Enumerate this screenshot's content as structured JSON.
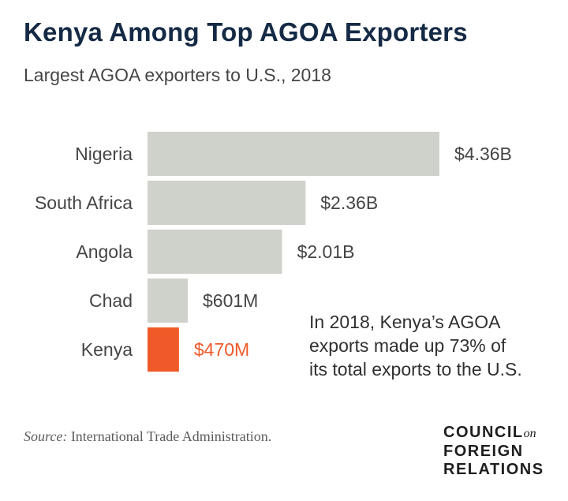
{
  "header": {
    "title": "Kenya Among Top AGOA Exporters",
    "subtitle": "Largest AGOA exporters to U.S., 2018"
  },
  "chart_data": {
    "type": "bar",
    "orientation": "horizontal",
    "categories": [
      "Nigeria",
      "South Africa",
      "Angola",
      "Chad",
      "Kenya"
    ],
    "values": [
      4.36,
      2.36,
      2.01,
      0.601,
      0.47
    ],
    "value_labels": [
      "$4.36B",
      "$2.36B",
      "$2.01B",
      "$601M",
      "$470M"
    ],
    "unit": "USD billions",
    "xlim": [
      0,
      4.36
    ],
    "grid": false,
    "legend": "none",
    "bar_color": "#cfd1cb",
    "highlight_category": "Kenya",
    "highlight_color": "#f05a28",
    "label_color": "#454545"
  },
  "annotation": {
    "lines": [
      "In 2018, Kenya’s AGOA",
      "exports made up 73% of",
      "its total exports to the U.S."
    ]
  },
  "footer": {
    "source_prefix": "Source:",
    "source_text": " International Trade Administration.",
    "logo_line1": "COUNCIL",
    "logo_on": "on",
    "logo_line2": "FOREIGN",
    "logo_line3": "RELATIONS"
  }
}
